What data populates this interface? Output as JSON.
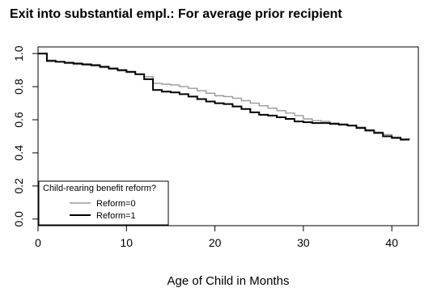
{
  "chart_data": {
    "type": "line",
    "title": "Exit into substantial empl.: For average prior recipient",
    "xlabel": "Age of Child in Months",
    "ylabel": "",
    "xlim": [
      0,
      43
    ],
    "ylim": [
      -0.04,
      1.04
    ],
    "x_ticks": [
      0,
      10,
      20,
      30,
      40
    ],
    "y_ticks": [
      0.0,
      0.2,
      0.4,
      0.6,
      0.8,
      1.0
    ],
    "x_tick_labels": [
      "0",
      "10",
      "20",
      "30",
      "40"
    ],
    "y_tick_labels": [
      "0.0",
      "0.2",
      "0.4",
      "0.6",
      "0.8",
      "1.0"
    ],
    "grid": false,
    "step": true,
    "legend": {
      "title": "Child-rearing benefit reform?",
      "placement": "bottom-left"
    },
    "series": [
      {
        "name": "Reform=0",
        "color": "#999999",
        "x": [
          0,
          1,
          2,
          3,
          4,
          5,
          6,
          7,
          8,
          9,
          10,
          11,
          12,
          13,
          14,
          15,
          16,
          17,
          18,
          19,
          20,
          21,
          22,
          23,
          24,
          25,
          26,
          27,
          28,
          29,
          30,
          31,
          32,
          33,
          34,
          35,
          36,
          37,
          38,
          39,
          40,
          41,
          42
        ],
        "y": [
          1.0,
          0.96,
          0.95,
          0.94,
          0.935,
          0.93,
          0.925,
          0.915,
          0.905,
          0.895,
          0.885,
          0.875,
          0.86,
          0.82,
          0.815,
          0.81,
          0.8,
          0.79,
          0.775,
          0.76,
          0.745,
          0.74,
          0.73,
          0.715,
          0.7,
          0.685,
          0.67,
          0.655,
          0.64,
          0.625,
          0.605,
          0.595,
          0.59,
          0.58,
          0.575,
          0.565,
          0.555,
          0.54,
          0.525,
          0.51,
          0.495,
          0.485,
          0.48
        ]
      },
      {
        "name": "Reform=1",
        "color": "#000000",
        "x": [
          0,
          1,
          2,
          3,
          4,
          5,
          6,
          7,
          8,
          9,
          10,
          11,
          12,
          13,
          14,
          15,
          16,
          17,
          18,
          19,
          20,
          21,
          22,
          23,
          24,
          25,
          26,
          27,
          28,
          29,
          30,
          31,
          32,
          33,
          34,
          35,
          36,
          37,
          38,
          39,
          40,
          41,
          42
        ],
        "y": [
          1.0,
          0.955,
          0.95,
          0.945,
          0.94,
          0.935,
          0.93,
          0.92,
          0.91,
          0.9,
          0.89,
          0.875,
          0.845,
          0.78,
          0.77,
          0.765,
          0.755,
          0.74,
          0.725,
          0.71,
          0.7,
          0.695,
          0.68,
          0.665,
          0.645,
          0.63,
          0.625,
          0.615,
          0.605,
          0.59,
          0.585,
          0.58,
          0.58,
          0.575,
          0.57,
          0.565,
          0.55,
          0.535,
          0.52,
          0.5,
          0.49,
          0.48,
          0.48
        ]
      }
    ]
  }
}
